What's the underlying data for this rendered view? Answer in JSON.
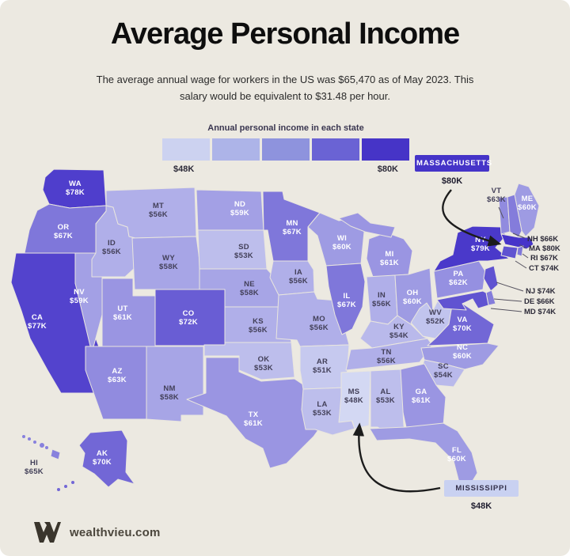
{
  "page": {
    "background": "#ece9e1"
  },
  "header": {
    "title": "Average Personal Income",
    "subtitle": "The average annual wage for workers in the US was $65,470 as of May 2023. This salary would be equivalent to $31.48 per hour."
  },
  "legend": {
    "caption": "Annual personal income in each state",
    "min_label": "$48K",
    "max_label": "$80K",
    "swatches": [
      "#ccd2f0",
      "#adb4e8",
      "#8e93dd",
      "#6a63d4",
      "#4634c7"
    ]
  },
  "color_scale": {
    "min_value": 48,
    "max_value": 80,
    "min_color": "#d3d8f3",
    "max_color": "#4634c9"
  },
  "callout_massachusetts": {
    "label": "MASSACHUSETTS",
    "value": "$80K"
  },
  "callout_mississippi": {
    "label": "MISSISSIPPI",
    "value": "$48K"
  },
  "states": [
    {
      "abbr": "WA",
      "value": 78,
      "value_label": "$78K",
      "label_type": "inside"
    },
    {
      "abbr": "OR",
      "value": 67,
      "value_label": "$67K",
      "label_type": "inside"
    },
    {
      "abbr": "CA",
      "value": 77,
      "value_label": "$77K",
      "label_type": "inside"
    },
    {
      "abbr": "NV",
      "value": 59,
      "value_label": "$59K",
      "label_type": "inside"
    },
    {
      "abbr": "ID",
      "value": 56,
      "value_label": "$56K",
      "label_type": "inside"
    },
    {
      "abbr": "MT",
      "value": 56,
      "value_label": "$56K",
      "label_type": "inside"
    },
    {
      "abbr": "WY",
      "value": 58,
      "value_label": "$58K",
      "label_type": "inside"
    },
    {
      "abbr": "UT",
      "value": 61,
      "value_label": "$61K",
      "label_type": "inside"
    },
    {
      "abbr": "CO",
      "value": 72,
      "value_label": "$72K",
      "label_type": "inside"
    },
    {
      "abbr": "AZ",
      "value": 63,
      "value_label": "$63K",
      "label_type": "inside"
    },
    {
      "abbr": "NM",
      "value": 58,
      "value_label": "$58K",
      "label_type": "inside"
    },
    {
      "abbr": "ND",
      "value": 59,
      "value_label": "$59K",
      "label_type": "inside"
    },
    {
      "abbr": "SD",
      "value": 53,
      "value_label": "$53K",
      "label_type": "inside"
    },
    {
      "abbr": "NE",
      "value": 58,
      "value_label": "$58K",
      "label_type": "inside"
    },
    {
      "abbr": "KS",
      "value": 56,
      "value_label": "$56K",
      "label_type": "inside"
    },
    {
      "abbr": "OK",
      "value": 53,
      "value_label": "$53K",
      "label_type": "inside"
    },
    {
      "abbr": "TX",
      "value": 61,
      "value_label": "$61K",
      "label_type": "inside"
    },
    {
      "abbr": "MN",
      "value": 67,
      "value_label": "$67K",
      "label_type": "inside"
    },
    {
      "abbr": "IA",
      "value": 56,
      "value_label": "$56K",
      "label_type": "inside"
    },
    {
      "abbr": "MO",
      "value": 56,
      "value_label": "$56K",
      "label_type": "inside"
    },
    {
      "abbr": "AR",
      "value": 51,
      "value_label": "$51K",
      "label_type": "inside"
    },
    {
      "abbr": "LA",
      "value": 53,
      "value_label": "$53K",
      "label_type": "inside"
    },
    {
      "abbr": "WI",
      "value": 60,
      "value_label": "$60K",
      "label_type": "inside"
    },
    {
      "abbr": "IL",
      "value": 67,
      "value_label": "$67K",
      "label_type": "inside"
    },
    {
      "abbr": "MI",
      "value": 61,
      "value_label": "$61K",
      "label_type": "inside"
    },
    {
      "abbr": "IN",
      "value": 56,
      "value_label": "$56K",
      "label_type": "inside"
    },
    {
      "abbr": "OH",
      "value": 60,
      "value_label": "$60K",
      "label_type": "inside"
    },
    {
      "abbr": "KY",
      "value": 54,
      "value_label": "$54K",
      "label_type": "inside"
    },
    {
      "abbr": "TN",
      "value": 56,
      "value_label": "$56K",
      "label_type": "inside"
    },
    {
      "abbr": "WV",
      "value": 52,
      "value_label": "$52K",
      "label_type": "inside"
    },
    {
      "abbr": "VA",
      "value": 70,
      "value_label": "$70K",
      "label_type": "inside"
    },
    {
      "abbr": "NC",
      "value": 60,
      "value_label": "$60K",
      "label_type": "inside"
    },
    {
      "abbr": "SC",
      "value": 54,
      "value_label": "$54K",
      "label_type": "inside"
    },
    {
      "abbr": "GA",
      "value": 61,
      "value_label": "$61K",
      "label_type": "inside"
    },
    {
      "abbr": "AL",
      "value": 53,
      "value_label": "$53K",
      "label_type": "inside"
    },
    {
      "abbr": "MS",
      "value": 48,
      "value_label": "$48K",
      "label_type": "inside"
    },
    {
      "abbr": "FL",
      "value": 60,
      "value_label": "$60K",
      "label_type": "inside"
    },
    {
      "abbr": "PA",
      "value": 62,
      "value_label": "$62K",
      "label_type": "inside"
    },
    {
      "abbr": "NY",
      "value": 79,
      "value_label": "$79K",
      "label_type": "inside"
    },
    {
      "abbr": "ME",
      "value": 60,
      "value_label": "$60K",
      "label_type": "inside"
    },
    {
      "abbr": "AK",
      "value": 70,
      "value_label": "$70K",
      "label_type": "inside"
    },
    {
      "abbr": "VT",
      "value": 63,
      "value_label": "$63K",
      "label_type": "outside-stacked"
    },
    {
      "abbr": "HI",
      "value": 65,
      "value_label": "$65K",
      "label_type": "outside-stacked"
    },
    {
      "abbr": "NH",
      "value": 66,
      "value_label": "$66K",
      "label_type": "outside-line"
    },
    {
      "abbr": "MA",
      "value": 80,
      "value_label": "$80K",
      "label_type": "outside-line"
    },
    {
      "abbr": "RI",
      "value": 67,
      "value_label": "$67K",
      "label_type": "outside-line"
    },
    {
      "abbr": "CT",
      "value": 74,
      "value_label": "$74K",
      "label_type": "outside-line"
    },
    {
      "abbr": "NJ",
      "value": 74,
      "value_label": "$74K",
      "label_type": "outside-line"
    },
    {
      "abbr": "DE",
      "value": 66,
      "value_label": "$66K",
      "label_type": "outside-line"
    },
    {
      "abbr": "MD",
      "value": 74,
      "value_label": "$74K",
      "label_type": "outside-line"
    }
  ],
  "footer": {
    "brand": "wealthvieu.com"
  }
}
